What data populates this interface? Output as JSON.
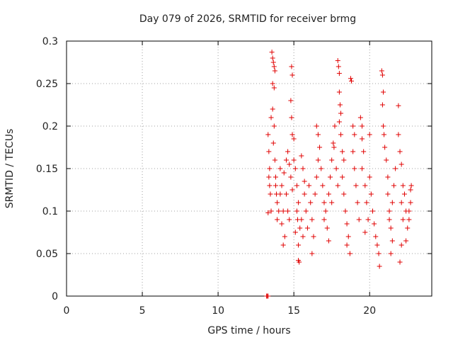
{
  "chart_data": {
    "type": "scatter",
    "title": "Day 079 of 2026, SRMTID for receiver brmg",
    "xlabel": "GPS time / hours",
    "ylabel": "SRMTID / TECUs",
    "xlim": [
      0,
      24.1
    ],
    "ylim": [
      0,
      0.3
    ],
    "xticks": [
      0,
      5,
      10,
      15,
      20
    ],
    "xtick_labels": [
      "0",
      "5",
      "10",
      "15",
      "20"
    ],
    "yticks": [
      0,
      0.05,
      0.1,
      0.15,
      0.2,
      0.25,
      0.3
    ],
    "ytick_labels": [
      "0",
      "0.05",
      "0.1",
      "0.15",
      "0.2",
      "0.25",
      "0.3"
    ],
    "grid": true,
    "marker": "plus",
    "color": "#e00000",
    "series": [
      {
        "name": "SRMTID",
        "points": [
          [
            13.2,
            0.0
          ],
          [
            13.25,
            0.0
          ],
          [
            13.3,
            0.0
          ],
          [
            13.3,
            0.19
          ],
          [
            13.35,
            0.17
          ],
          [
            13.4,
            0.15
          ],
          [
            13.4,
            0.13
          ],
          [
            13.45,
            0.12
          ],
          [
            13.5,
            0.1
          ],
          [
            13.3,
            0.098
          ],
          [
            13.35,
            0.14
          ],
          [
            13.5,
            0.21
          ],
          [
            13.55,
            0.287
          ],
          [
            13.6,
            0.28
          ],
          [
            13.65,
            0.275
          ],
          [
            13.7,
            0.27
          ],
          [
            13.6,
            0.25
          ],
          [
            13.7,
            0.245
          ],
          [
            13.75,
            0.265
          ],
          [
            13.6,
            0.22
          ],
          [
            13.7,
            0.2
          ],
          [
            13.65,
            0.18
          ],
          [
            13.75,
            0.16
          ],
          [
            13.8,
            0.14
          ],
          [
            13.85,
            0.12
          ],
          [
            13.9,
            0.11
          ],
          [
            13.8,
            0.13
          ],
          [
            13.9,
            0.09
          ],
          [
            14.0,
            0.1
          ],
          [
            14.1,
            0.12
          ],
          [
            14.2,
            0.085
          ],
          [
            14.3,
            0.06
          ],
          [
            14.4,
            0.07
          ],
          [
            14.3,
            0.1
          ],
          [
            14.2,
            0.13
          ],
          [
            14.1,
            0.15
          ],
          [
            14.35,
            0.145
          ],
          [
            14.5,
            0.16
          ],
          [
            14.6,
            0.17
          ],
          [
            14.5,
            0.12
          ],
          [
            14.6,
            0.1
          ],
          [
            14.7,
            0.09
          ],
          [
            14.8,
            0.14
          ],
          [
            14.7,
            0.155
          ],
          [
            14.9,
            0.125
          ],
          [
            14.85,
            0.27
          ],
          [
            14.9,
            0.26
          ],
          [
            14.8,
            0.23
          ],
          [
            14.85,
            0.21
          ],
          [
            14.9,
            0.19
          ],
          [
            15.0,
            0.185
          ],
          [
            15.0,
            0.16
          ],
          [
            15.1,
            0.15
          ],
          [
            15.2,
            0.13
          ],
          [
            15.3,
            0.11
          ],
          [
            15.25,
            0.09
          ],
          [
            15.4,
            0.08
          ],
          [
            15.3,
            0.06
          ],
          [
            15.2,
            0.1
          ],
          [
            15.1,
            0.075
          ],
          [
            15.3,
            0.042
          ],
          [
            15.35,
            0.04
          ],
          [
            15.5,
            0.165
          ],
          [
            15.6,
            0.15
          ],
          [
            15.7,
            0.12
          ],
          [
            15.8,
            0.1
          ],
          [
            15.9,
            0.08
          ],
          [
            15.6,
            0.07
          ],
          [
            15.5,
            0.09
          ],
          [
            15.7,
            0.135
          ],
          [
            16.0,
            0.13
          ],
          [
            16.1,
            0.11
          ],
          [
            16.2,
            0.09
          ],
          [
            16.3,
            0.07
          ],
          [
            16.2,
            0.05
          ],
          [
            16.4,
            0.12
          ],
          [
            16.5,
            0.14
          ],
          [
            16.6,
            0.16
          ],
          [
            16.7,
            0.175
          ],
          [
            16.5,
            0.2
          ],
          [
            16.6,
            0.19
          ],
          [
            16.8,
            0.15
          ],
          [
            16.9,
            0.13
          ],
          [
            17.0,
            0.11
          ],
          [
            17.1,
            0.1
          ],
          [
            17.2,
            0.08
          ],
          [
            17.3,
            0.065
          ],
          [
            17.0,
            0.09
          ],
          [
            17.3,
            0.12
          ],
          [
            17.4,
            0.14
          ],
          [
            17.5,
            0.16
          ],
          [
            17.6,
            0.18
          ],
          [
            17.7,
            0.2
          ],
          [
            17.65,
            0.175
          ],
          [
            17.8,
            0.15
          ],
          [
            17.9,
            0.13
          ],
          [
            17.5,
            0.11
          ],
          [
            17.9,
            0.277
          ],
          [
            17.95,
            0.27
          ],
          [
            18.0,
            0.262
          ],
          [
            18.0,
            0.24
          ],
          [
            18.05,
            0.225
          ],
          [
            18.1,
            0.215
          ],
          [
            18.0,
            0.205
          ],
          [
            18.1,
            0.19
          ],
          [
            18.2,
            0.17
          ],
          [
            18.3,
            0.16
          ],
          [
            18.2,
            0.14
          ],
          [
            18.3,
            0.12
          ],
          [
            18.4,
            0.1
          ],
          [
            18.5,
            0.085
          ],
          [
            18.6,
            0.07
          ],
          [
            18.7,
            0.05
          ],
          [
            18.5,
            0.06
          ],
          [
            18.75,
            0.256
          ],
          [
            18.8,
            0.253
          ],
          [
            18.9,
            0.2
          ],
          [
            19.0,
            0.19
          ],
          [
            18.9,
            0.17
          ],
          [
            19.0,
            0.15
          ],
          [
            19.1,
            0.13
          ],
          [
            19.2,
            0.11
          ],
          [
            19.3,
            0.09
          ],
          [
            19.4,
            0.21
          ],
          [
            19.5,
            0.2
          ],
          [
            19.5,
            0.185
          ],
          [
            19.6,
            0.17
          ],
          [
            19.5,
            0.15
          ],
          [
            19.7,
            0.13
          ],
          [
            19.8,
            0.11
          ],
          [
            19.9,
            0.09
          ],
          [
            19.7,
            0.075
          ],
          [
            20.0,
            0.19
          ],
          [
            20.0,
            0.14
          ],
          [
            20.1,
            0.12
          ],
          [
            20.2,
            0.1
          ],
          [
            20.3,
            0.085
          ],
          [
            20.4,
            0.07
          ],
          [
            20.5,
            0.06
          ],
          [
            20.6,
            0.05
          ],
          [
            20.65,
            0.035
          ],
          [
            20.8,
            0.265
          ],
          [
            20.85,
            0.26
          ],
          [
            20.9,
            0.24
          ],
          [
            20.85,
            0.225
          ],
          [
            20.9,
            0.2
          ],
          [
            20.95,
            0.19
          ],
          [
            21.0,
            0.175
          ],
          [
            21.1,
            0.16
          ],
          [
            21.2,
            0.14
          ],
          [
            21.2,
            0.12
          ],
          [
            21.3,
            0.1
          ],
          [
            21.4,
            0.08
          ],
          [
            21.5,
            0.065
          ],
          [
            21.4,
            0.05
          ],
          [
            21.3,
            0.09
          ],
          [
            21.5,
            0.11
          ],
          [
            21.6,
            0.13
          ],
          [
            21.7,
            0.15
          ],
          [
            21.9,
            0.224
          ],
          [
            21.9,
            0.19
          ],
          [
            22.0,
            0.17
          ],
          [
            22.1,
            0.155
          ],
          [
            22.2,
            0.13
          ],
          [
            22.1,
            0.11
          ],
          [
            22.2,
            0.09
          ],
          [
            22.0,
            0.04
          ],
          [
            22.1,
            0.06
          ],
          [
            22.3,
            0.12
          ],
          [
            22.4,
            0.1
          ],
          [
            22.5,
            0.08
          ],
          [
            22.4,
            0.065
          ],
          [
            22.6,
            0.09
          ],
          [
            22.7,
            0.11
          ],
          [
            22.75,
            0.13
          ],
          [
            22.7,
            0.125
          ],
          [
            22.6,
            0.1
          ]
        ]
      }
    ]
  }
}
